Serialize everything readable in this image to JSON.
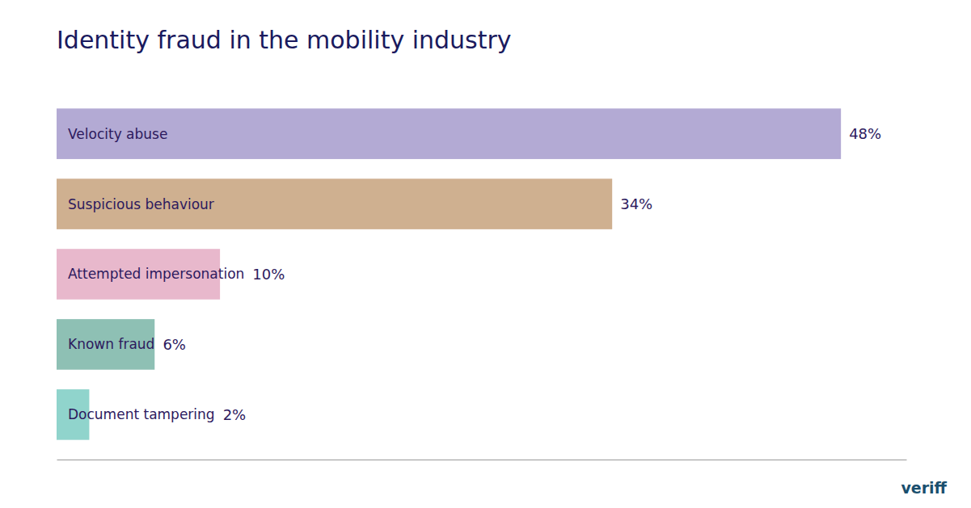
{
  "chart_data": {
    "type": "bar",
    "orientation": "horizontal",
    "title": "Identity fraud in the mobility industry",
    "categories": [
      "Velocity abuse",
      "Suspicious behaviour",
      "Attempted impersonation",
      "Known fraud",
      "Document tampering"
    ],
    "values": [
      48,
      34,
      10,
      6,
      2
    ],
    "value_labels": [
      "48%",
      "34%",
      "10%",
      "6%",
      "2%"
    ],
    "colors": [
      "#b3aad4",
      "#cfb090",
      "#e8b8cc",
      "#8ec0b4",
      "#90d4cc"
    ],
    "xlim": [
      0,
      52
    ],
    "data_labels": true,
    "tick_labels": "y",
    "grid": false,
    "annotations": [
      "veriff"
    ]
  }
}
